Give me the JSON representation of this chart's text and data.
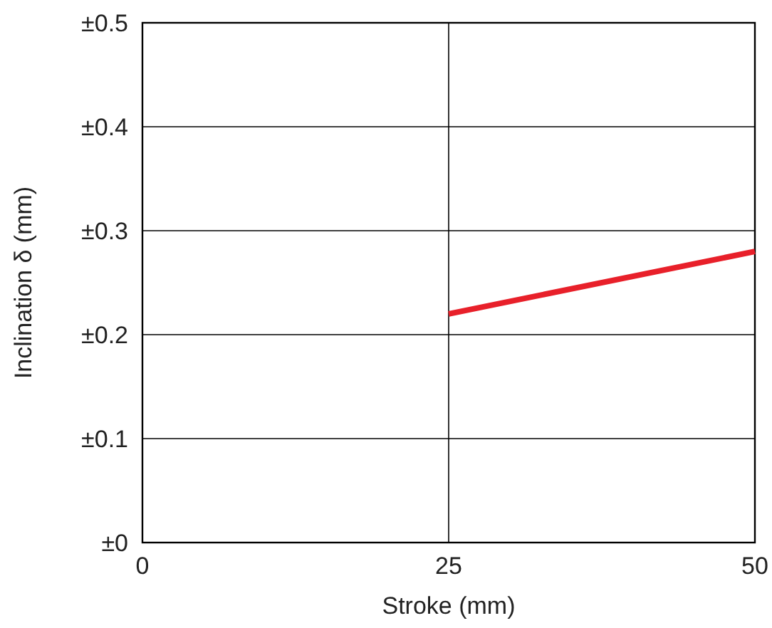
{
  "chart_data": {
    "type": "line",
    "xlabel": "Stroke (mm)",
    "ylabel": "Inclination δ (mm)",
    "series": [
      {
        "color": "#e8202a",
        "x": [
          25,
          50
        ],
        "values": [
          0.22,
          0.28
        ]
      }
    ],
    "xlim": [
      0,
      50
    ],
    "xticks": [
      0,
      25,
      50
    ],
    "ylim": [
      0,
      0.5
    ],
    "yticks": [
      {
        "value": 0,
        "label": "±0"
      },
      {
        "value": 0.1,
        "label": "±0.1"
      },
      {
        "value": 0.2,
        "label": "±0.2"
      },
      {
        "value": 0.3,
        "label": "±0.3"
      },
      {
        "value": 0.4,
        "label": "±0.4"
      },
      {
        "value": 0.5,
        "label": "±0.5"
      }
    ],
    "grid": true,
    "marker": "none",
    "line_style": "solid"
  }
}
